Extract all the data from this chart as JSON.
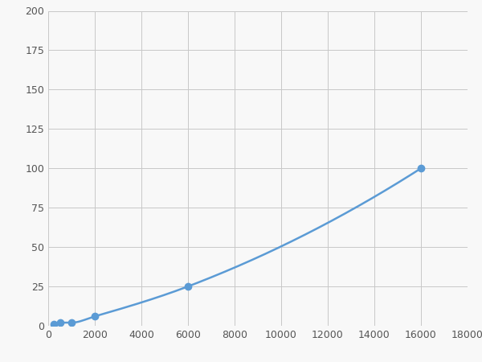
{
  "x": [
    250,
    500,
    1000,
    2000,
    6000,
    16000
  ],
  "y": [
    1,
    2,
    2,
    6,
    25,
    100
  ],
  "line_color": "#5b9bd5",
  "marker_color": "#5b9bd5",
  "marker_size": 6,
  "line_width": 1.8,
  "xlim": [
    0,
    18000
  ],
  "ylim": [
    0,
    200
  ],
  "xticks": [
    0,
    2000,
    4000,
    6000,
    8000,
    10000,
    12000,
    14000,
    16000,
    18000
  ],
  "yticks": [
    0,
    25,
    50,
    75,
    100,
    125,
    150,
    175,
    200
  ],
  "grid_color": "#c8c8c8",
  "background_color": "#f8f8f8",
  "figure_bg": "#f8f8f8"
}
